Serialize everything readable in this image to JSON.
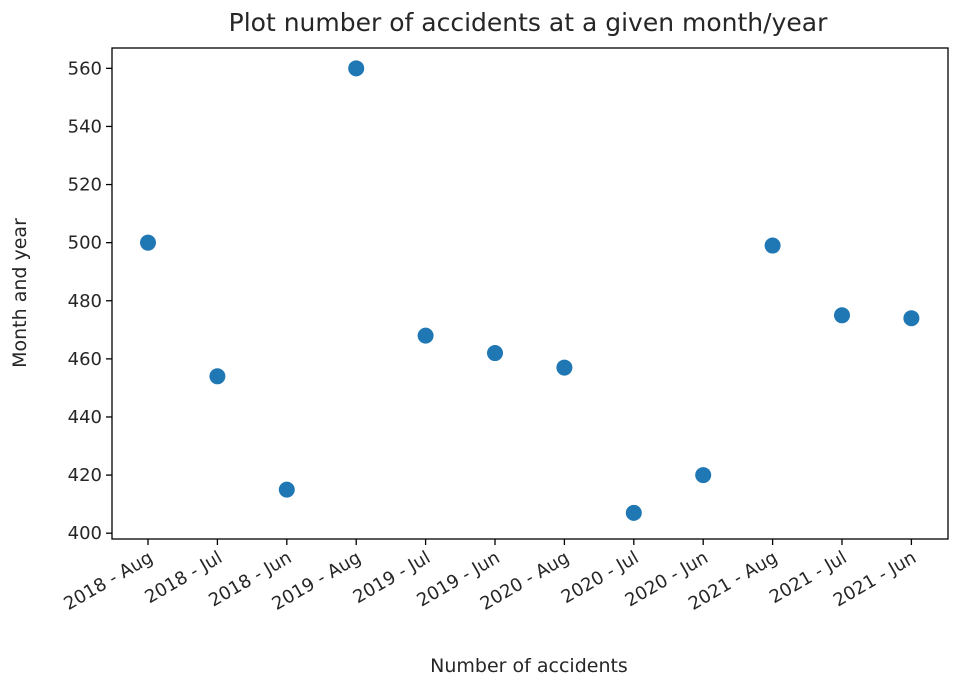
{
  "chart_data": {
    "type": "scatter",
    "title": "Plot number of accidents at a given month/year",
    "xlabel": "Number of accidents",
    "ylabel": "Month and year",
    "categories": [
      "2018 - Aug",
      "2018 - Jul",
      "2018 - Jun",
      "2019 - Aug",
      "2019 - Jul",
      "2019 - Jun",
      "2020 - Aug",
      "2020 - Jul",
      "2020 - Jun",
      "2021 - Aug",
      "2021 - Jul",
      "2021 - Jun"
    ],
    "values": [
      500,
      454,
      415,
      560,
      468,
      462,
      457,
      407,
      420,
      499,
      475,
      474
    ],
    "yticks": [
      400,
      420,
      440,
      460,
      480,
      500,
      520,
      540,
      560
    ],
    "ylim": [
      398,
      567
    ],
    "grid": false,
    "marker_color": "#1f77b4"
  }
}
